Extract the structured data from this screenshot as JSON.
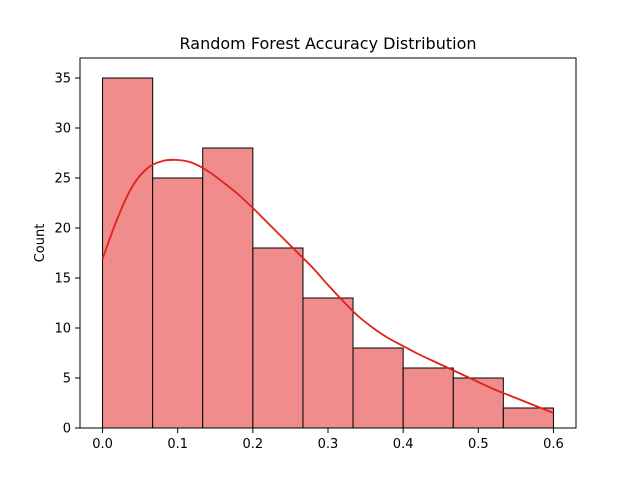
{
  "chart_data": {
    "type": "bar",
    "title": "Random Forest Accuracy Distribution",
    "xlabel": "",
    "ylabel": "Count",
    "xlim": [
      -0.03,
      0.63
    ],
    "ylim": [
      0,
      37
    ],
    "x_ticks": [
      0.0,
      0.1,
      0.2,
      0.3,
      0.4,
      0.5,
      0.6
    ],
    "x_tick_labels": [
      "0.0",
      "0.1",
      "0.2",
      "0.3",
      "0.4",
      "0.5",
      "0.6"
    ],
    "y_ticks": [
      0,
      5,
      10,
      15,
      20,
      25,
      30,
      35
    ],
    "y_tick_labels": [
      "0",
      "5",
      "10",
      "15",
      "20",
      "25",
      "30",
      "35"
    ],
    "bin_edges": [
      0.0,
      0.0667,
      0.1333,
      0.2,
      0.2667,
      0.3333,
      0.4,
      0.4667,
      0.5333,
      0.6
    ],
    "counts": [
      35,
      25,
      28,
      18,
      13,
      8,
      6,
      5,
      2
    ],
    "kde": {
      "x": [
        0.0,
        0.02,
        0.04,
        0.06,
        0.08,
        0.1,
        0.12,
        0.14,
        0.16,
        0.18,
        0.2,
        0.22,
        0.24,
        0.26,
        0.28,
        0.3,
        0.32,
        0.34,
        0.36,
        0.38,
        0.4,
        0.42,
        0.44,
        0.46,
        0.48,
        0.5,
        0.52,
        0.54,
        0.56,
        0.58,
        0.6
      ],
      "y": [
        16.9,
        21.0,
        24.2,
        26.0,
        26.7,
        26.8,
        26.5,
        25.7,
        24.6,
        23.4,
        22.0,
        20.5,
        19.0,
        17.5,
        16.0,
        14.3,
        12.7,
        11.2,
        10.0,
        9.0,
        8.2,
        7.4,
        6.7,
        6.0,
        5.3,
        4.6,
        3.9,
        3.3,
        2.7,
        2.1,
        1.5
      ]
    },
    "grid": false,
    "colors": {
      "bar_fill": "#f08c8c",
      "bar_edge": "#000000",
      "kde_line": "#e3211c"
    }
  }
}
